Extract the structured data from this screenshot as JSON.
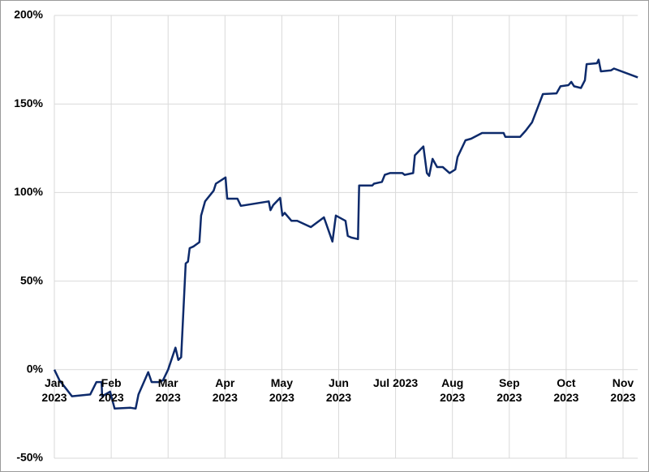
{
  "chart_data": {
    "type": "line",
    "xlim": [
      0,
      10.26
    ],
    "xticks": [
      {
        "value": 0,
        "label": "Jan\n2023"
      },
      {
        "value": 1,
        "label": "Feb\n2023"
      },
      {
        "value": 2,
        "label": "Mar\n2023"
      },
      {
        "value": 3,
        "label": "Apr\n2023"
      },
      {
        "value": 4,
        "label": "May\n2023"
      },
      {
        "value": 5,
        "label": "Jun\n2023"
      },
      {
        "value": 6,
        "label": "Jul 2023"
      },
      {
        "value": 7,
        "label": "Aug\n2023"
      },
      {
        "value": 8,
        "label": "Sep\n2023"
      },
      {
        "value": 9,
        "label": "Oct\n2023"
      },
      {
        "value": 10,
        "label": "Nov\n2023"
      }
    ],
    "ylim": [
      -50,
      200
    ],
    "yticks": [
      {
        "value": -50,
        "label": "-50%"
      },
      {
        "value": 0,
        "label": "0%"
      },
      {
        "value": 50,
        "label": "50%"
      },
      {
        "value": 100,
        "label": "100%"
      },
      {
        "value": 150,
        "label": "150%"
      },
      {
        "value": 200,
        "label": "200%"
      }
    ],
    "grid": true,
    "x": [
      0,
      0.09,
      0.2,
      0.31,
      0.63,
      0.74,
      0.83,
      0.84,
      0.98,
      1.06,
      1.34,
      1.43,
      1.48,
      1.65,
      1.71,
      1.84,
      1.91,
      2.0,
      2.13,
      2.18,
      2.23,
      2.31,
      2.35,
      2.38,
      2.45,
      2.55,
      2.58,
      2.65,
      2.8,
      2.84,
      3.01,
      3.04,
      3.22,
      3.28,
      3.77,
      3.8,
      3.85,
      3.97,
      4.01,
      4.05,
      4.17,
      4.27,
      4.51,
      4.74,
      4.89,
      4.95,
      5.12,
      5.16,
      5.22,
      5.34,
      5.36,
      5.59,
      5.62,
      5.76,
      5.81,
      5.9,
      6.12,
      6.16,
      6.31,
      6.34,
      6.49,
      6.55,
      6.59,
      6.65,
      6.73,
      6.83,
      6.95,
      7.05,
      7.09,
      7.23,
      7.33,
      7.52,
      7.9,
      7.93,
      8.19,
      8.29,
      8.4,
      8.59,
      8.83,
      8.9,
      9.04,
      9.09,
      9.14,
      9.26,
      9.33,
      9.36,
      9.54,
      9.57,
      9.61,
      9.79,
      9.84,
      10.26
    ],
    "series": [
      {
        "color": "#0d2a6b",
        "values": [
          0,
          -6,
          -10.5,
          -15,
          -14,
          -7,
          -7,
          -15,
          -12.4,
          -22,
          -21.5,
          -22,
          -14,
          -1.4,
          -7,
          -7,
          -6,
          0,
          12.4,
          5.5,
          7,
          60,
          61,
          68.6,
          69.6,
          72,
          87,
          95,
          101,
          105,
          108.5,
          96.5,
          96.5,
          92.5,
          95,
          90,
          93,
          97,
          87,
          88.5,
          84,
          84,
          80.5,
          86,
          72.3,
          87,
          84,
          75.5,
          74.6,
          73.7,
          104,
          104,
          105,
          106,
          110,
          111,
          111,
          110,
          111,
          121,
          126,
          111,
          109.4,
          119,
          114.4,
          114.4,
          111,
          113,
          120,
          129.5,
          130.4,
          133.6,
          133.6,
          131.4,
          131.4,
          135,
          139.6,
          155.6,
          156,
          160,
          160.6,
          162.5,
          160,
          159,
          163.4,
          172.5,
          173,
          175,
          168.4,
          169,
          170,
          165
        ]
      }
    ]
  }
}
